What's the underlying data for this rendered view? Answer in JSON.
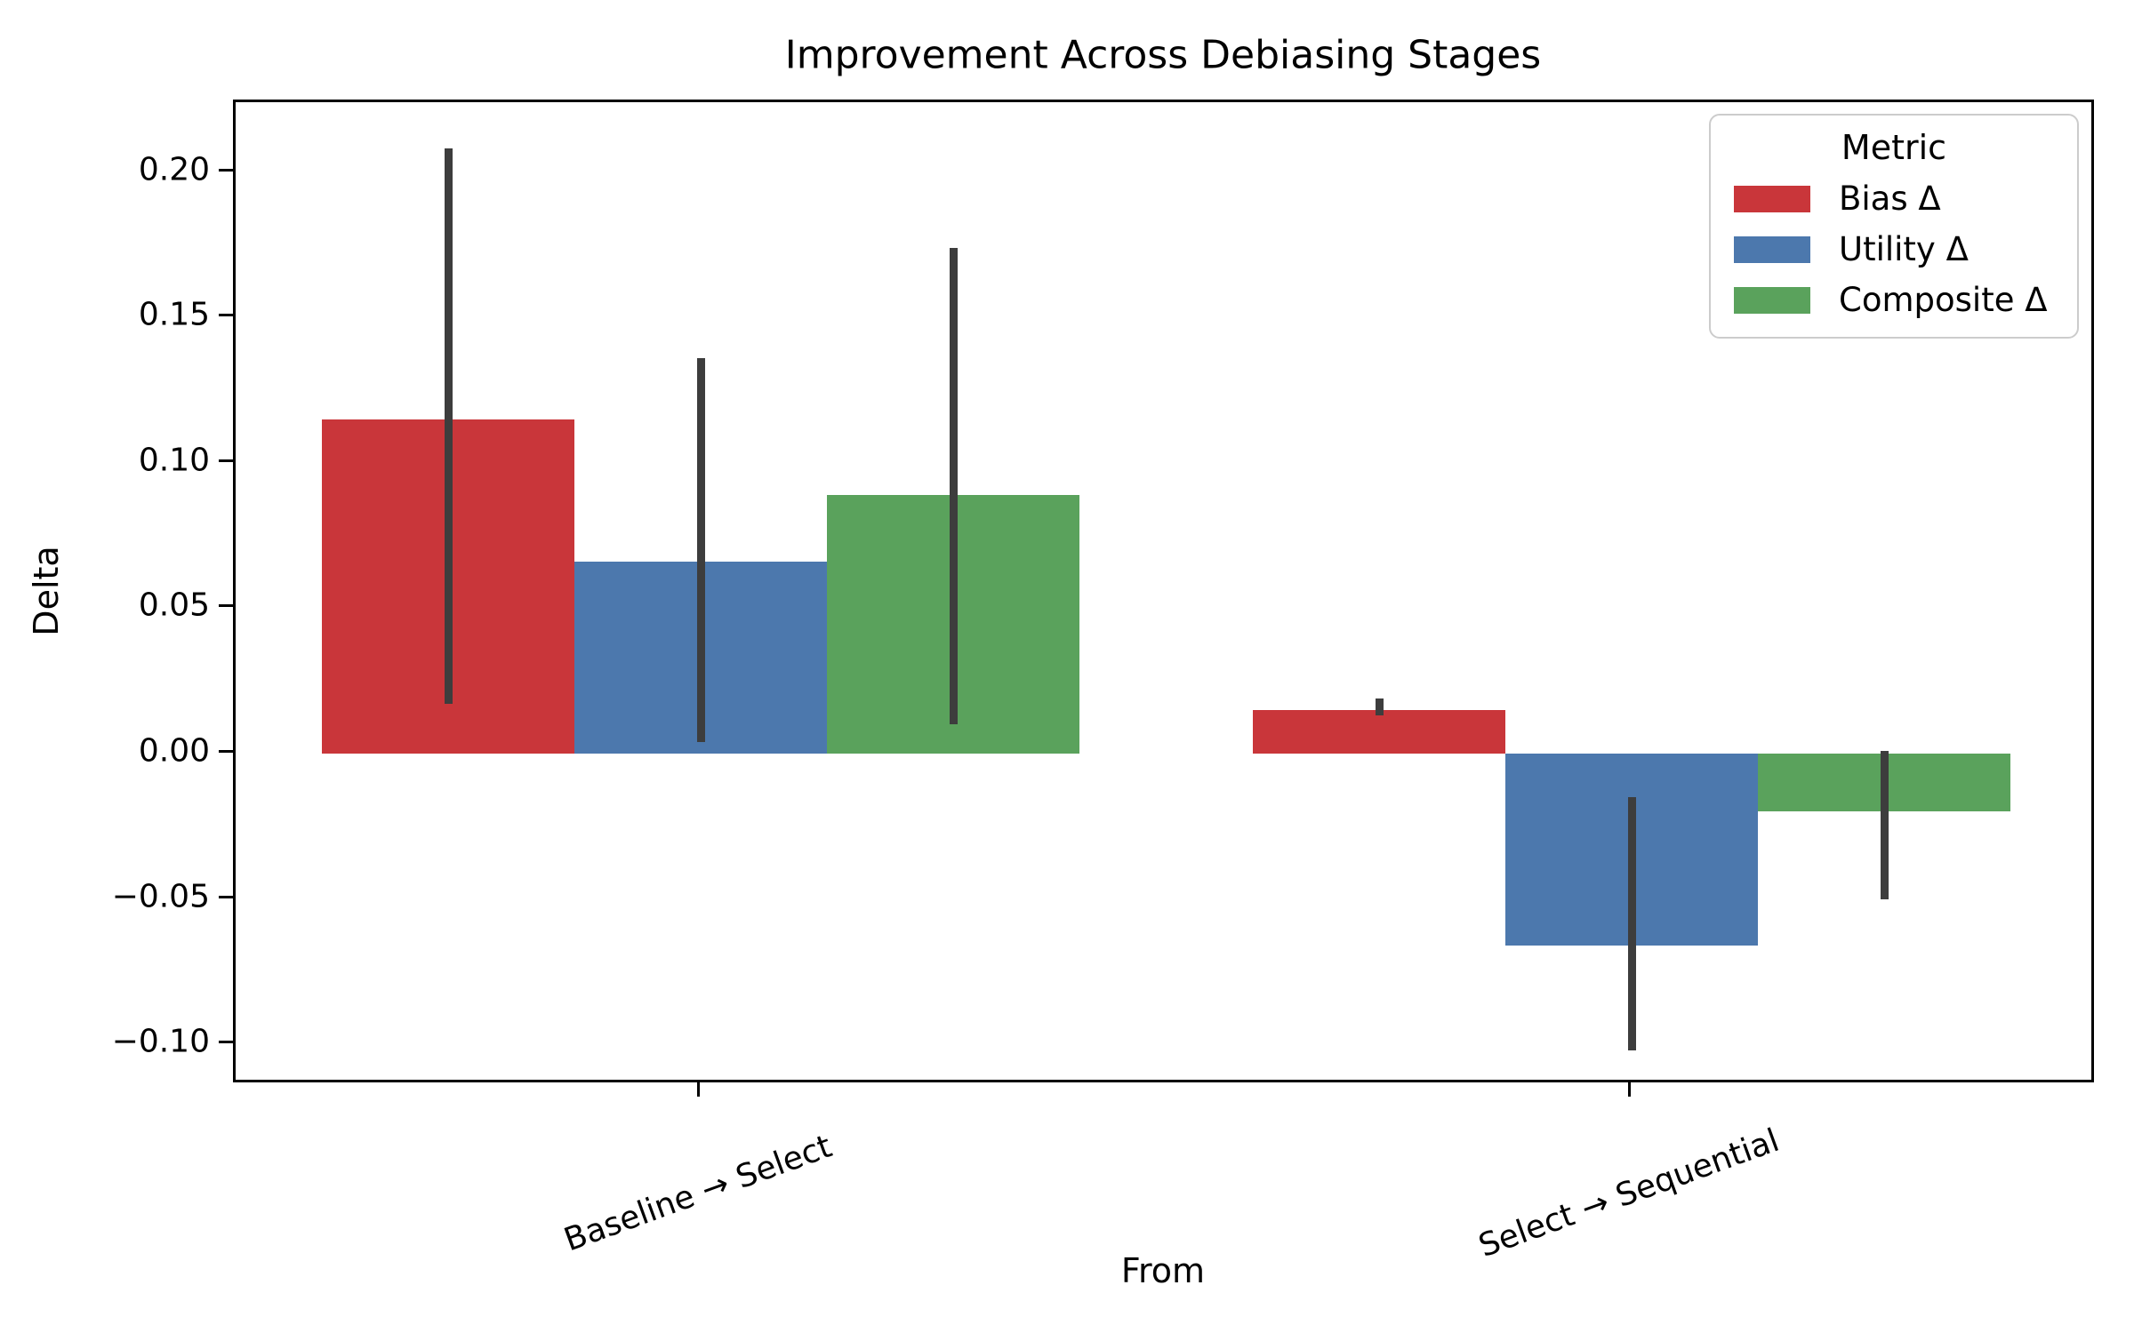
{
  "title": "Improvement Across Debiasing Stages",
  "axes": {
    "xlabel": "From",
    "ylabel": "Delta"
  },
  "legend": {
    "title": "Metric",
    "items": [
      {
        "label": "Bias Δ",
        "color": "#c9363a"
      },
      {
        "label": "Utility Δ",
        "color": "#4c78ad"
      },
      {
        "label": "Composite Δ",
        "color": "#5aa25c"
      }
    ]
  },
  "chart_data": {
    "type": "bar",
    "title": "Improvement Across Debiasing Stages",
    "xlabel": "From",
    "ylabel": "Delta",
    "categories": [
      "Baseline → Select",
      "Select → Sequential"
    ],
    "series": [
      {
        "name": "Bias Δ",
        "color": "#c9363a",
        "values": [
          0.115,
          0.015
        ],
        "ci_low": [
          0.017,
          0.013
        ],
        "ci_high": [
          0.208,
          0.019
        ]
      },
      {
        "name": "Utility Δ",
        "color": "#4c78ad",
        "values": [
          0.066,
          -0.066
        ],
        "ci_low": [
          0.004,
          -0.102
        ],
        "ci_high": [
          0.136,
          -0.015
        ]
      },
      {
        "name": "Composite Δ",
        "color": "#5aa25c",
        "values": [
          0.089,
          -0.02
        ],
        "ci_low": [
          0.01,
          -0.05
        ],
        "ci_high": [
          0.174,
          0.001
        ]
      }
    ],
    "yticks": [
      0.2,
      0.15,
      0.1,
      0.05,
      0.0,
      -0.05,
      -0.1
    ],
    "ylim": [
      -0.114,
      0.224
    ],
    "grid": false,
    "error_bar_color": "#3d3d3d",
    "legend_position": "upper right"
  }
}
